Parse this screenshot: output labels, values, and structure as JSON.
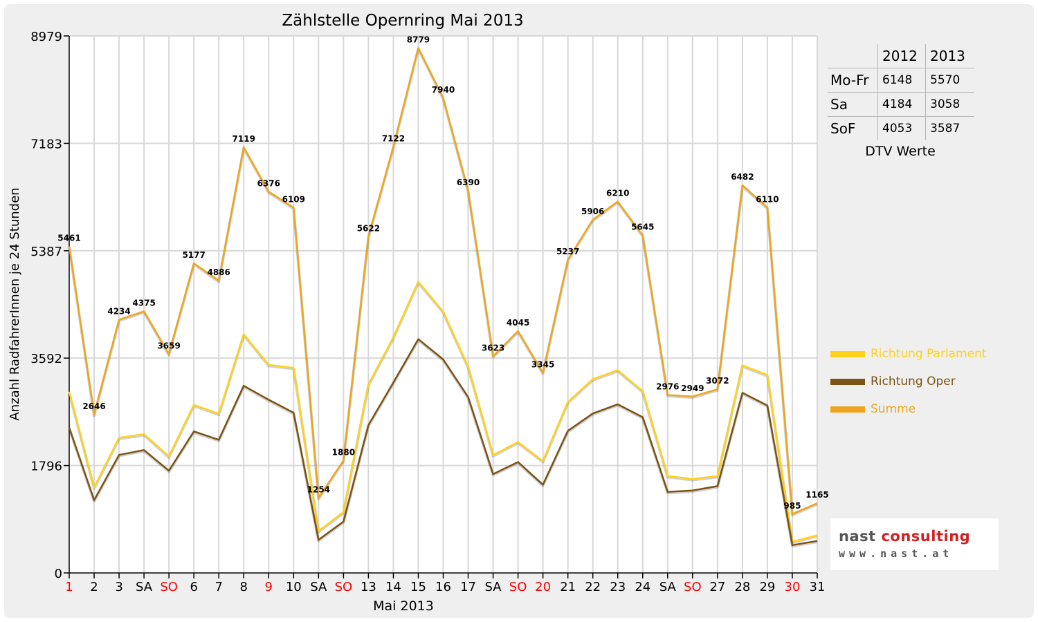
{
  "colors": {
    "parlament": "#ffd21a",
    "oper": "#7b5314",
    "summe": "#efa51d",
    "weekend": "#ff0000",
    "grid": "#d8d8d8"
  },
  "chart_data": {
    "type": "line",
    "title": "Zählstelle Opernring Mai 2013",
    "xlabel": "Mai 2013",
    "ylabel": "Anzahl RadfahrerInnen je 24 Stunden",
    "ylim": [
      0,
      8979
    ],
    "yticks": [
      0,
      1796,
      3592,
      5387,
      7183,
      8979
    ],
    "categories": [
      "1",
      "2",
      "3",
      "SA",
      "SO",
      "6",
      "7",
      "8",
      "9",
      "10",
      "SA",
      "SO",
      "13",
      "14",
      "15",
      "16",
      "17",
      "SA",
      "SO",
      "20",
      "21",
      "22",
      "23",
      "24",
      "SA",
      "SO",
      "27",
      "28",
      "29",
      "30",
      "31"
    ],
    "category_red": [
      true,
      false,
      false,
      false,
      true,
      false,
      false,
      false,
      true,
      false,
      false,
      true,
      false,
      false,
      false,
      false,
      false,
      false,
      true,
      true,
      false,
      false,
      false,
      false,
      false,
      true,
      false,
      false,
      false,
      true,
      false
    ],
    "grid": true,
    "legend_position": "right",
    "series": [
      {
        "name": "Richtung Parlament",
        "color": "#ffd21a",
        "values": [
          3030,
          1430,
          2260,
          2320,
          1950,
          2810,
          2660,
          3990,
          3480,
          3430,
          700,
          1020,
          3150,
          3940,
          4870,
          4370,
          3450,
          1970,
          2190,
          1870,
          2860,
          3240,
          3390,
          3040,
          1620,
          1570,
          1620,
          3470,
          3310,
          520,
          630
        ]
      },
      {
        "name": "Richtung Oper",
        "color": "#7b5314",
        "values": [
          2430,
          1216,
          1974,
          2055,
          1709,
          2367,
          2226,
          3129,
          2896,
          2679,
          554,
          860,
          2472,
          3182,
          3909,
          3570,
          2940,
          1653,
          1855,
          1475,
          2377,
          2666,
          2820,
          2605,
          1356,
          1379,
          1452,
          3012,
          2800,
          465,
          535
        ]
      },
      {
        "name": "Summe",
        "color": "#efa51d",
        "values": [
          5461,
          2646,
          4234,
          4375,
          3659,
          5177,
          4886,
          7119,
          6376,
          6109,
          1254,
          1880,
          5622,
          7122,
          8779,
          7940,
          6390,
          3623,
          4045,
          3345,
          5237,
          5906,
          6210,
          5645,
          2976,
          2949,
          3072,
          6482,
          6110,
          985,
          1165
        ],
        "labels": [
          "5461",
          "2646",
          "4234",
          "4375",
          "3659",
          "5177",
          "4886",
          "7119",
          "6376",
          "6109",
          "1254",
          "1880",
          "5622",
          "7122",
          "8779",
          "7940",
          "6390",
          "3623",
          "4045",
          "3345",
          "5237",
          "5906",
          "6210",
          "5645",
          "2976",
          "2949",
          "3072",
          "6482",
          "6110",
          "985",
          "1165"
        ]
      }
    ]
  },
  "stats": {
    "headers": [
      "",
      "2012",
      "2013"
    ],
    "rows": [
      {
        "label": "Mo-Fr",
        "v2012": "6148",
        "v2013": "5570"
      },
      {
        "label": "Sa",
        "v2012": "4184",
        "v2013": "3058"
      },
      {
        "label": "SoF",
        "v2012": "4053",
        "v2013": "3587"
      }
    ],
    "caption": "DTV Werte"
  },
  "logo": {
    "name_part1": "nast ",
    "name_part2": "consulting",
    "url": "www.nast.at"
  }
}
